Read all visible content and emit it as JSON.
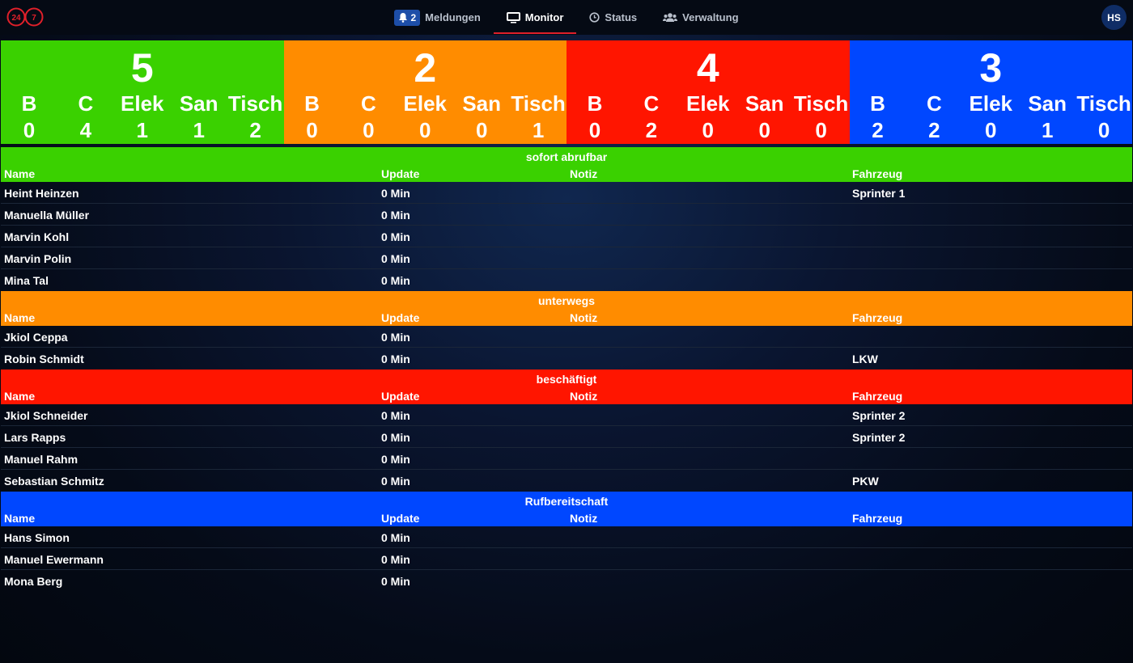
{
  "header": {
    "logo": {
      "left_text": "24",
      "right_text": "7",
      "color": "#e0202a"
    },
    "nav": [
      {
        "label": "Meldungen",
        "icon": "bell-icon",
        "badge": "2",
        "active": false
      },
      {
        "label": "Monitor",
        "icon": "monitor-icon",
        "active": true
      },
      {
        "label": "Status",
        "icon": "clock-icon",
        "active": false
      },
      {
        "label": "Verwaltung",
        "icon": "users-icon",
        "active": false
      }
    ],
    "avatar": "HS"
  },
  "summary": [
    {
      "color": "#3ad100",
      "total": "5",
      "cols": [
        {
          "label": "B",
          "value": "0"
        },
        {
          "label": "C",
          "value": "4"
        },
        {
          "label": "Elek",
          "value": "1"
        },
        {
          "label": "San",
          "value": "1"
        },
        {
          "label": "Tisch",
          "value": "2"
        }
      ]
    },
    {
      "color": "#ff8c00",
      "total": "2",
      "cols": [
        {
          "label": "B",
          "value": "0"
        },
        {
          "label": "C",
          "value": "0"
        },
        {
          "label": "Elek",
          "value": "0"
        },
        {
          "label": "San",
          "value": "0"
        },
        {
          "label": "Tisch",
          "value": "1"
        }
      ]
    },
    {
      "color": "#ff1500",
      "total": "4",
      "cols": [
        {
          "label": "B",
          "value": "0"
        },
        {
          "label": "C",
          "value": "2"
        },
        {
          "label": "Elek",
          "value": "0"
        },
        {
          "label": "San",
          "value": "0"
        },
        {
          "label": "Tisch",
          "value": "0"
        }
      ]
    },
    {
      "color": "#0047ff",
      "total": "3",
      "cols": [
        {
          "label": "B",
          "value": "2"
        },
        {
          "label": "C",
          "value": "2"
        },
        {
          "label": "Elek",
          "value": "0"
        },
        {
          "label": "San",
          "value": "1"
        },
        {
          "label": "Tisch",
          "value": "0"
        }
      ]
    }
  ],
  "columns": {
    "name": "Name",
    "update": "Update",
    "notiz": "Notiz",
    "fahrzeug": "Fahrzeug"
  },
  "sections": [
    {
      "title": "sofort abrufbar",
      "color": "#3ad100",
      "rows": [
        {
          "name": "Heint Heinzen",
          "update": "0 Min",
          "notiz": "",
          "fahrzeug": "Sprinter 1"
        },
        {
          "name": "Manuella Müller",
          "update": "0 Min",
          "notiz": "",
          "fahrzeug": ""
        },
        {
          "name": "Marvin Kohl",
          "update": "0 Min",
          "notiz": "",
          "fahrzeug": ""
        },
        {
          "name": "Marvin Polin",
          "update": "0 Min",
          "notiz": "",
          "fahrzeug": ""
        },
        {
          "name": "Mina Tal",
          "update": "0 Min",
          "notiz": "",
          "fahrzeug": ""
        }
      ]
    },
    {
      "title": "unterwegs",
      "color": "#ff8c00",
      "rows": [
        {
          "name": "Jkiol Ceppa",
          "update": "0 Min",
          "notiz": "",
          "fahrzeug": ""
        },
        {
          "name": "Robin Schmidt",
          "update": "0 Min",
          "notiz": "",
          "fahrzeug": "LKW"
        }
      ]
    },
    {
      "title": "beschäftigt",
      "color": "#ff1500",
      "rows": [
        {
          "name": "Jkiol Schneider",
          "update": "0 Min",
          "notiz": "",
          "fahrzeug": "Sprinter 2"
        },
        {
          "name": "Lars Rapps",
          "update": "0 Min",
          "notiz": "",
          "fahrzeug": "Sprinter 2"
        },
        {
          "name": "Manuel Rahm",
          "update": "0 Min",
          "notiz": "",
          "fahrzeug": ""
        },
        {
          "name": "Sebastian Schmitz",
          "update": "0 Min",
          "notiz": "",
          "fahrzeug": "PKW"
        }
      ]
    },
    {
      "title": "Rufbereitschaft",
      "color": "#0047ff",
      "rows": [
        {
          "name": "Hans Simon",
          "update": "0 Min",
          "notiz": "",
          "fahrzeug": ""
        },
        {
          "name": "Manuel Ewermann",
          "update": "0 Min",
          "notiz": "",
          "fahrzeug": ""
        },
        {
          "name": "Mona Berg",
          "update": "0 Min",
          "notiz": "",
          "fahrzeug": ""
        }
      ]
    }
  ]
}
